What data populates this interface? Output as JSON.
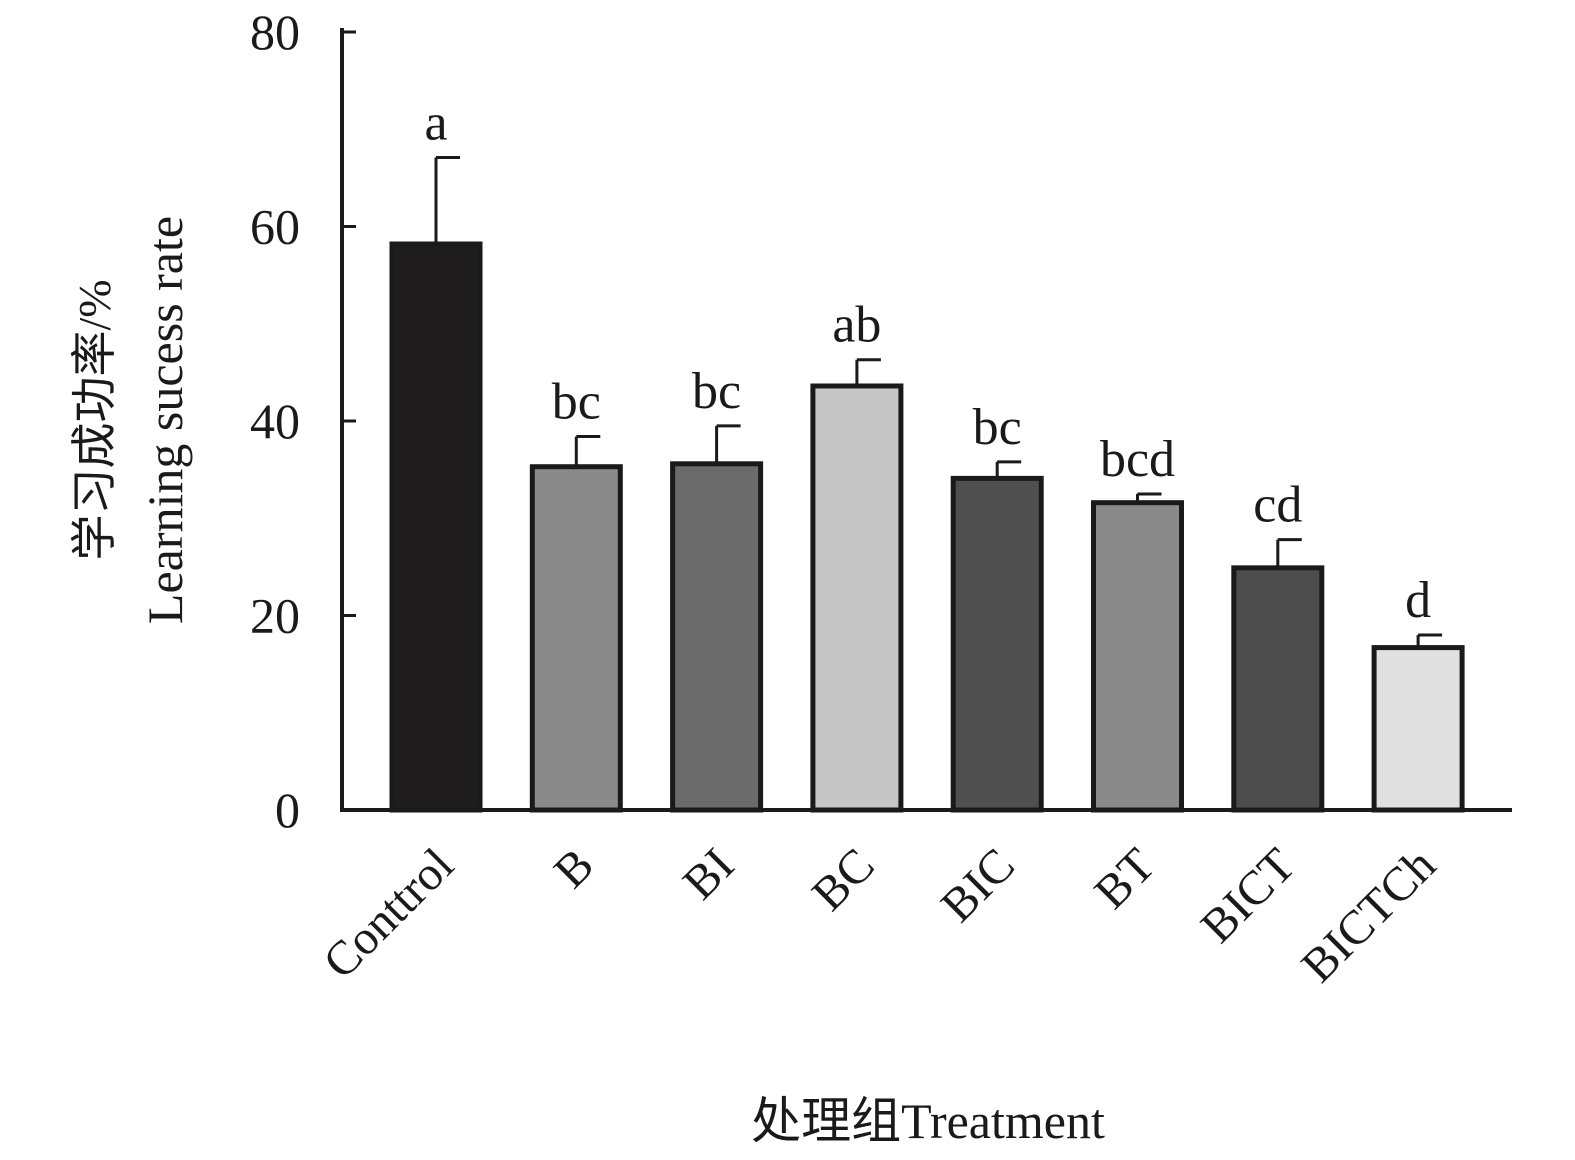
{
  "chart_data": {
    "type": "bar",
    "categories": [
      "Conttrol",
      "B",
      "BI",
      "BC",
      "BIC",
      "BT",
      "BICT",
      "BICTCh"
    ],
    "values": [
      58.2,
      35.3,
      35.6,
      43.6,
      34.1,
      31.6,
      24.9,
      16.7
    ],
    "error_upper": [
      67.1,
      38.4,
      39.5,
      46.3,
      35.8,
      32.5,
      27.8,
      18.0
    ],
    "significance_letters": [
      "a",
      "bc",
      "bc",
      "ab",
      "bc",
      "bcd",
      "cd",
      "d"
    ],
    "colors": [
      "#1e1c1d",
      "#8a8a8a",
      "#6b6b6b",
      "#c6c6c6",
      "#505050",
      "#8a8a8a",
      "#4d4d4d",
      "#e0e0e0"
    ],
    "ylabel_cn": "学习成功率/%",
    "ylabel_en": "Learning sucess rate",
    "xlabel": "处理组Treatment",
    "ylim": [
      0,
      80
    ],
    "yticks": [
      0,
      20,
      40,
      60,
      80
    ],
    "grid": false
  }
}
